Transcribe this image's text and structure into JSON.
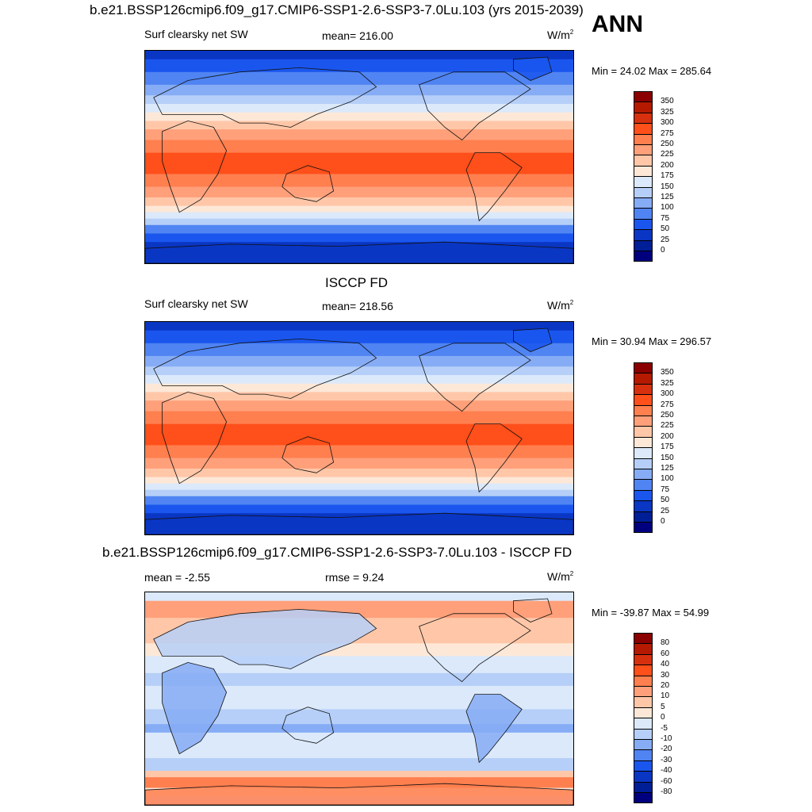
{
  "header": {
    "title": "b.e21.BSSP126cmip6.f09_g17.CMIP6-SSP1-2.6-SSP3-7.0Lu.103 (yrs 2015-2039)",
    "season": "ANN"
  },
  "panels": [
    {
      "id": "model",
      "title": "",
      "left_label": "Surf clearsky net SW",
      "center_label": "mean= 216.00",
      "units_base": "W/m",
      "units_exp": "2",
      "minmax": "Min =  24.02 Max = 285.64",
      "colorbar": {
        "labels": [
          "350",
          "325",
          "300",
          "275",
          "250",
          "225",
          "200",
          "175",
          "150",
          "125",
          "100",
          "75",
          "50",
          "25",
          "0"
        ],
        "colors": [
          "#8b0000",
          "#b51a00",
          "#d7300f",
          "#ff4f1a",
          "#ff7f4f",
          "#ffa07a",
          "#ffc7a8",
          "#fde8d8",
          "#dbe9fb",
          "#b6cff8",
          "#86acf5",
          "#4f84f2",
          "#1a56ee",
          "#0a36c4",
          "#001e96",
          "#00007f"
        ]
      }
    },
    {
      "id": "obs",
      "title": "ISCCP FD",
      "left_label": "Surf clearsky net SW",
      "center_label": "mean= 218.56",
      "units_base": "W/m",
      "units_exp": "2",
      "minmax": "Min =  30.94 Max = 296.57",
      "colorbar": {
        "labels": [
          "350",
          "325",
          "300",
          "275",
          "250",
          "225",
          "200",
          "175",
          "150",
          "125",
          "100",
          "75",
          "50",
          "25",
          "0"
        ],
        "colors": [
          "#8b0000",
          "#b51a00",
          "#d7300f",
          "#ff4f1a",
          "#ff7f4f",
          "#ffa07a",
          "#ffc7a8",
          "#fde8d8",
          "#dbe9fb",
          "#b6cff8",
          "#86acf5",
          "#4f84f2",
          "#1a56ee",
          "#0a36c4",
          "#001e96",
          "#00007f"
        ]
      }
    },
    {
      "id": "diff",
      "title": "b.e21.BSSP126cmip6.f09_g17.CMIP6-SSP1-2.6-SSP3-7.0Lu.103 - ISCCP FD",
      "left_label": "mean =  -2.55",
      "center_label": "rmse =   9.24",
      "units_base": "W/m",
      "units_exp": "2",
      "minmax": "Min = -39.87 Max =  54.99",
      "colorbar": {
        "labels": [
          "80",
          "60",
          "40",
          "30",
          "20",
          "10",
          "5",
          "0",
          "-5",
          "-10",
          "-20",
          "-30",
          "-40",
          "-60",
          "-80"
        ],
        "colors": [
          "#8b0000",
          "#b51a00",
          "#d7300f",
          "#ff4f1a",
          "#ff7f4f",
          "#ffa07a",
          "#ffc7a8",
          "#fde8d8",
          "#dbe9fb",
          "#b6cff8",
          "#86acf5",
          "#4f84f2",
          "#1a56ee",
          "#0a36c4",
          "#001e96",
          "#00007f"
        ]
      }
    }
  ]
}
